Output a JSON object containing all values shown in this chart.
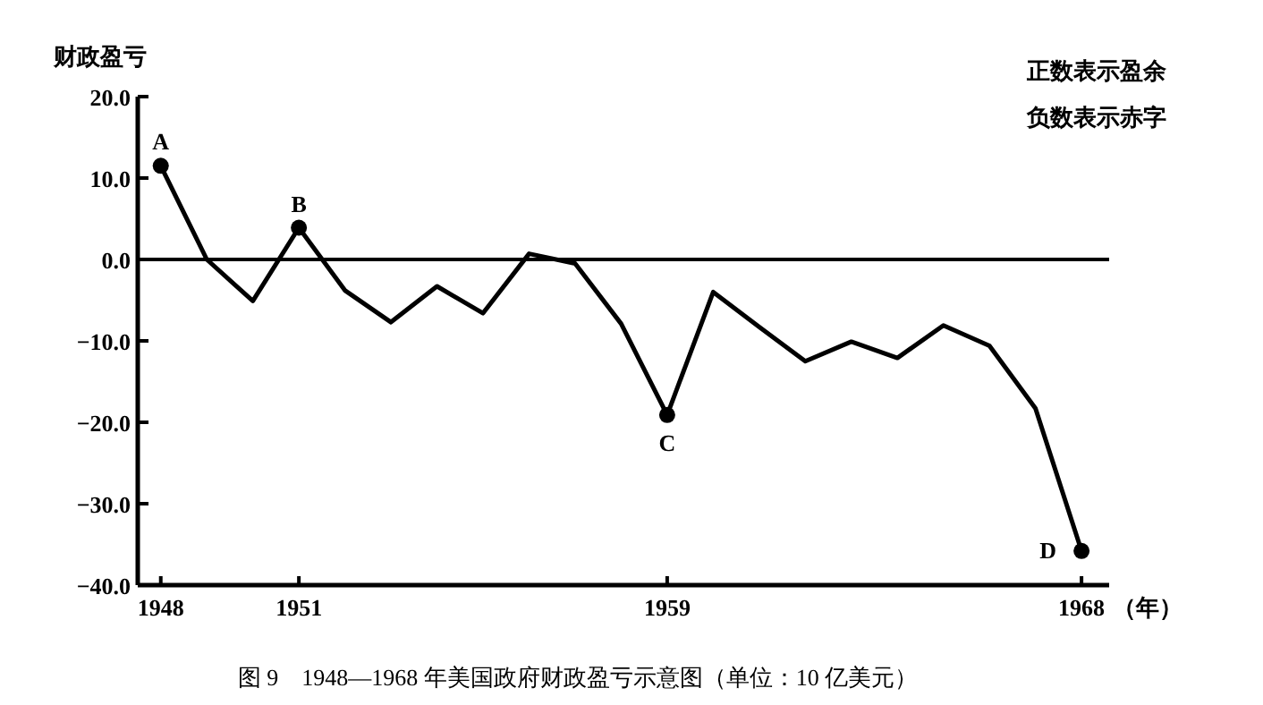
{
  "chart_data": {
    "type": "line",
    "title": "图 9　1948—1968 年美国政府财政盈亏示意图（单位：10 亿美元）",
    "xlabel": "（年）",
    "ylabel": "财政盈亏",
    "x": [
      1948,
      1949,
      1950,
      1951,
      1952,
      1953,
      1954,
      1955,
      1956,
      1957,
      1958,
      1959,
      1960,
      1961,
      1962,
      1963,
      1964,
      1965,
      1966,
      1967,
      1968
    ],
    "series": [
      {
        "color": "#000000",
        "values": [
          11.5,
          0,
          -5.1,
          3.9,
          -3.8,
          -7.7,
          -3.3,
          -6.6,
          0.7,
          -0.5,
          -7.9,
          -19.1,
          -4.0,
          -8.3,
          -12.5,
          -10.1,
          -12.1,
          -8.1,
          -10.6,
          -18.3,
          -35.8
        ]
      },
      {
        "type": "scatter",
        "color": "#000000",
        "x": [
          1948,
          1951,
          1959,
          1968
        ],
        "values": [
          11.5,
          3.9,
          -19.1,
          -35.8
        ]
      }
    ],
    "xlim": [
      1947.5,
      1968.6
    ],
    "ylim": [
      -40,
      20
    ],
    "xticks": [
      1948,
      1951,
      1959,
      1968
    ],
    "yticks": [
      {
        "value": 20,
        "label": "20.0"
      },
      {
        "value": 10,
        "label": "10.0"
      },
      {
        "value": 0,
        "label": "0.0"
      },
      {
        "value": -10,
        "label": "−10.0"
      },
      {
        "value": -20,
        "label": "−20.0"
      },
      {
        "value": -30,
        "label": "−30.0"
      },
      {
        "value": -40,
        "label": "−40.0"
      }
    ],
    "ref_lines": [
      {
        "axis": "y",
        "value": 0,
        "color": "#000000"
      }
    ],
    "annotations": [
      {
        "text": "A",
        "x": 1948,
        "y": 11.5
      },
      {
        "text": "B",
        "x": 1951,
        "y": 3.9
      },
      {
        "text": "C",
        "x": 1959,
        "y": -19.1
      },
      {
        "text": "D",
        "x": 1968,
        "y": -35.8
      },
      "正数表示盈余",
      "负数表示赤字"
    ]
  }
}
